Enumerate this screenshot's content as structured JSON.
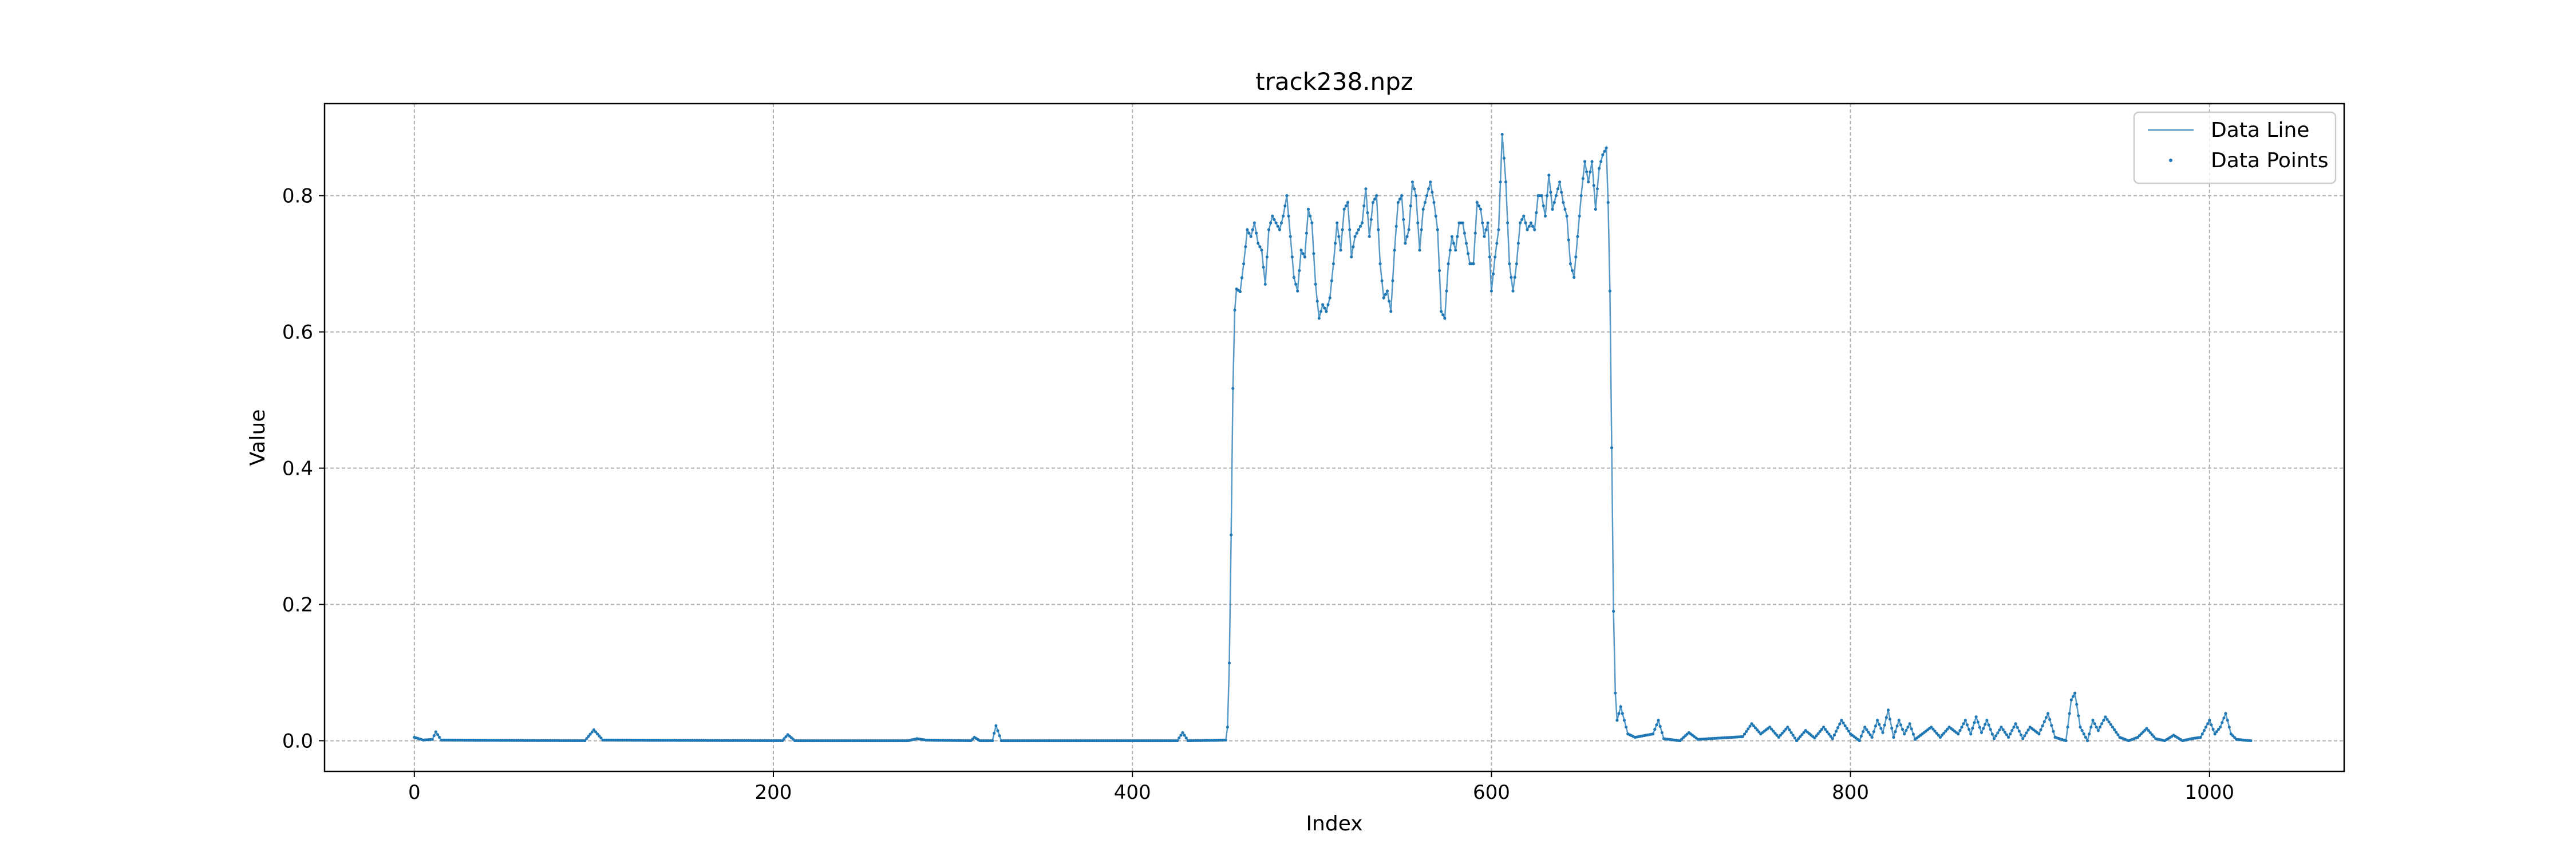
{
  "chart_data": {
    "type": "line",
    "title": "track238.npz",
    "xlabel": "Index",
    "ylabel": "Value",
    "xlim": [
      -50,
      1075
    ],
    "ylim": [
      -0.045,
      0.935
    ],
    "xticks": [
      0,
      200,
      400,
      600,
      800,
      1000
    ],
    "xtick_labels": [
      "0",
      "200",
      "400",
      "600",
      "800",
      "1000"
    ],
    "yticks": [
      0.0,
      0.2,
      0.4,
      0.6,
      0.8
    ],
    "ytick_labels": [
      "0.0",
      "0.2",
      "0.4",
      "0.6",
      "0.8"
    ],
    "grid": true,
    "legend_position": "top-right",
    "series": [
      {
        "name": "Data Line",
        "style": "line",
        "color": "#1f77b4"
      },
      {
        "name": "Data Points",
        "style": "points",
        "color": "#1f77b4"
      }
    ],
    "n_points": 1024,
    "anchors": [
      [
        0,
        0.005
      ],
      [
        5,
        0.001
      ],
      [
        10,
        0.002
      ],
      [
        12,
        0.013
      ],
      [
        15,
        0.001
      ],
      [
        95,
        0.0
      ],
      [
        100,
        0.016
      ],
      [
        105,
        0.001
      ],
      [
        205,
        0.0
      ],
      [
        208,
        0.009
      ],
      [
        212,
        0.0
      ],
      [
        275,
        0.0
      ],
      [
        280,
        0.003
      ],
      [
        285,
        0.001
      ],
      [
        310,
        0.0
      ],
      [
        312,
        0.005
      ],
      [
        315,
        0.0
      ],
      [
        322,
        0.0
      ],
      [
        324,
        0.022
      ],
      [
        327,
        0.0
      ],
      [
        425,
        0.0
      ],
      [
        428,
        0.012
      ],
      [
        431,
        0.0
      ],
      [
        452,
        0.001
      ],
      [
        453,
        0.02
      ],
      [
        454,
        0.114
      ],
      [
        455,
        0.302
      ],
      [
        456,
        0.517
      ],
      [
        457,
        0.632
      ],
      [
        458,
        0.663
      ],
      [
        460,
        0.659
      ],
      [
        462,
        0.7
      ],
      [
        464,
        0.75
      ],
      [
        466,
        0.74
      ],
      [
        468,
        0.76
      ],
      [
        470,
        0.73
      ],
      [
        472,
        0.72
      ],
      [
        474,
        0.67
      ],
      [
        476,
        0.75
      ],
      [
        478,
        0.77
      ],
      [
        480,
        0.76
      ],
      [
        482,
        0.75
      ],
      [
        484,
        0.77
      ],
      [
        486,
        0.8
      ],
      [
        488,
        0.74
      ],
      [
        490,
        0.68
      ],
      [
        492,
        0.66
      ],
      [
        494,
        0.72
      ],
      [
        496,
        0.71
      ],
      [
        498,
        0.78
      ],
      [
        500,
        0.76
      ],
      [
        502,
        0.67
      ],
      [
        504,
        0.62
      ],
      [
        506,
        0.64
      ],
      [
        508,
        0.63
      ],
      [
        510,
        0.65
      ],
      [
        512,
        0.7
      ],
      [
        514,
        0.76
      ],
      [
        516,
        0.72
      ],
      [
        518,
        0.78
      ],
      [
        520,
        0.79
      ],
      [
        522,
        0.71
      ],
      [
        524,
        0.74
      ],
      [
        526,
        0.75
      ],
      [
        528,
        0.76
      ],
      [
        530,
        0.81
      ],
      [
        532,
        0.74
      ],
      [
        534,
        0.79
      ],
      [
        536,
        0.8
      ],
      [
        538,
        0.7
      ],
      [
        540,
        0.65
      ],
      [
        542,
        0.66
      ],
      [
        544,
        0.63
      ],
      [
        546,
        0.72
      ],
      [
        548,
        0.79
      ],
      [
        550,
        0.8
      ],
      [
        552,
        0.73
      ],
      [
        554,
        0.75
      ],
      [
        556,
        0.82
      ],
      [
        558,
        0.8
      ],
      [
        560,
        0.72
      ],
      [
        562,
        0.78
      ],
      [
        564,
        0.8
      ],
      [
        566,
        0.82
      ],
      [
        568,
        0.79
      ],
      [
        570,
        0.75
      ],
      [
        572,
        0.63
      ],
      [
        574,
        0.62
      ],
      [
        576,
        0.7
      ],
      [
        578,
        0.74
      ],
      [
        580,
        0.72
      ],
      [
        582,
        0.76
      ],
      [
        584,
        0.76
      ],
      [
        586,
        0.73
      ],
      [
        588,
        0.7
      ],
      [
        590,
        0.7
      ],
      [
        592,
        0.79
      ],
      [
        594,
        0.78
      ],
      [
        596,
        0.74
      ],
      [
        598,
        0.76
      ],
      [
        600,
        0.66
      ],
      [
        602,
        0.71
      ],
      [
        604,
        0.75
      ],
      [
        606,
        0.89
      ],
      [
        608,
        0.82
      ],
      [
        610,
        0.7
      ],
      [
        612,
        0.66
      ],
      [
        614,
        0.7
      ],
      [
        616,
        0.76
      ],
      [
        618,
        0.77
      ],
      [
        620,
        0.75
      ],
      [
        622,
        0.76
      ],
      [
        624,
        0.75
      ],
      [
        626,
        0.8
      ],
      [
        628,
        0.8
      ],
      [
        630,
        0.77
      ],
      [
        632,
        0.83
      ],
      [
        634,
        0.78
      ],
      [
        636,
        0.8
      ],
      [
        638,
        0.82
      ],
      [
        640,
        0.79
      ],
      [
        642,
        0.77
      ],
      [
        644,
        0.7
      ],
      [
        646,
        0.68
      ],
      [
        648,
        0.74
      ],
      [
        650,
        0.8
      ],
      [
        652,
        0.85
      ],
      [
        654,
        0.82
      ],
      [
        656,
        0.85
      ],
      [
        658,
        0.78
      ],
      [
        660,
        0.84
      ],
      [
        662,
        0.86
      ],
      [
        664,
        0.87
      ],
      [
        665,
        0.79
      ],
      [
        666,
        0.66
      ],
      [
        667,
        0.43
      ],
      [
        668,
        0.19
      ],
      [
        669,
        0.07
      ],
      [
        670,
        0.03
      ],
      [
        672,
        0.05
      ],
      [
        674,
        0.03
      ],
      [
        676,
        0.01
      ],
      [
        680,
        0.005
      ],
      [
        690,
        0.01
      ],
      [
        693,
        0.03
      ],
      [
        696,
        0.003
      ],
      [
        705,
        0.0
      ],
      [
        710,
        0.012
      ],
      [
        715,
        0.002
      ],
      [
        740,
        0.006
      ],
      [
        745,
        0.025
      ],
      [
        750,
        0.01
      ],
      [
        755,
        0.02
      ],
      [
        760,
        0.005
      ],
      [
        765,
        0.02
      ],
      [
        770,
        0.0
      ],
      [
        775,
        0.015
      ],
      [
        780,
        0.004
      ],
      [
        785,
        0.02
      ],
      [
        790,
        0.003
      ],
      [
        795,
        0.03
      ],
      [
        800,
        0.01
      ],
      [
        805,
        0.0
      ],
      [
        808,
        0.02
      ],
      [
        812,
        0.005
      ],
      [
        815,
        0.03
      ],
      [
        818,
        0.012
      ],
      [
        821,
        0.045
      ],
      [
        824,
        0.005
      ],
      [
        827,
        0.03
      ],
      [
        830,
        0.01
      ],
      [
        833,
        0.025
      ],
      [
        836,
        0.002
      ],
      [
        840,
        0.01
      ],
      [
        845,
        0.02
      ],
      [
        850,
        0.005
      ],
      [
        855,
        0.02
      ],
      [
        860,
        0.01
      ],
      [
        864,
        0.03
      ],
      [
        867,
        0.01
      ],
      [
        870,
        0.035
      ],
      [
        873,
        0.012
      ],
      [
        876,
        0.03
      ],
      [
        880,
        0.003
      ],
      [
        884,
        0.02
      ],
      [
        888,
        0.005
      ],
      [
        892,
        0.025
      ],
      [
        896,
        0.003
      ],
      [
        900,
        0.02
      ],
      [
        905,
        0.01
      ],
      [
        910,
        0.04
      ],
      [
        914,
        0.005
      ],
      [
        920,
        0.0
      ],
      [
        923,
        0.06
      ],
      [
        925,
        0.07
      ],
      [
        928,
        0.02
      ],
      [
        932,
        0.0
      ],
      [
        935,
        0.03
      ],
      [
        938,
        0.015
      ],
      [
        942,
        0.035
      ],
      [
        946,
        0.02
      ],
      [
        950,
        0.005
      ],
      [
        955,
        0.0
      ],
      [
        960,
        0.005
      ],
      [
        965,
        0.018
      ],
      [
        970,
        0.003
      ],
      [
        975,
        0.0
      ],
      [
        980,
        0.008
      ],
      [
        985,
        0.0
      ],
      [
        990,
        0.003
      ],
      [
        995,
        0.005
      ],
      [
        1000,
        0.03
      ],
      [
        1003,
        0.01
      ],
      [
        1006,
        0.02
      ],
      [
        1009,
        0.04
      ],
      [
        1012,
        0.01
      ],
      [
        1015,
        0.002
      ],
      [
        1023,
        0.0
      ]
    ]
  }
}
